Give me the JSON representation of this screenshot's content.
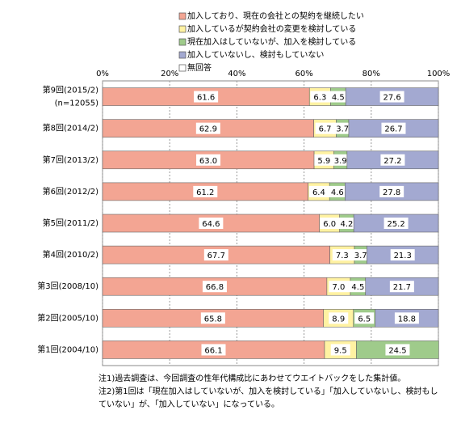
{
  "chart_data": {
    "type": "stacked-bar-horizontal",
    "categories": [
      "第9回(2015/2)",
      "第8回(2014/2)",
      "第7回(2013/2)",
      "第6回(2012/2)",
      "第5回(2011/2)",
      "第4回(2010/2)",
      "第3回(2008/10)",
      "第2回(2005/10)",
      "第1回(2004/10)"
    ],
    "category_sublabels": [
      "(n=12055)",
      null,
      null,
      null,
      null,
      null,
      null,
      null,
      null
    ],
    "series": [
      {
        "name": "加入しており、現在の会社との契約を継続したい",
        "color": "#f3a593",
        "values": [
          61.6,
          62.9,
          63.0,
          61.2,
          64.6,
          67.7,
          66.8,
          65.8,
          66.1
        ],
        "value_labels": [
          "61.6",
          "62.9",
          "63.0",
          "61.2",
          "64.6",
          "67.7",
          "66.8",
          "65.8",
          "66.1"
        ]
      },
      {
        "name": "加入しているが契約会社の変更を検討している",
        "color": "#fff2a2",
        "values": [
          6.3,
          6.7,
          5.9,
          6.4,
          6.0,
          7.3,
          7.0,
          8.9,
          9.5
        ],
        "value_labels": [
          "6.3",
          "6.7",
          "5.9",
          "6.4",
          "6.0",
          "7.3",
          "7.0",
          "8.9",
          "9.5"
        ]
      },
      {
        "name": "現在加入はしていないが、加入を検討している",
        "color": "#9fcb8b",
        "values": [
          4.5,
          3.7,
          3.9,
          4.6,
          4.2,
          3.7,
          4.5,
          6.5,
          24.5
        ],
        "value_labels": [
          "4.5",
          "3.7",
          "3.9",
          "4.6",
          "4.2",
          "3.7",
          "4.5",
          "6.5",
          "24.5"
        ]
      },
      {
        "name": "加入していないし、検討もしていない",
        "color": "#a3a9d1",
        "values": [
          27.6,
          26.7,
          27.2,
          27.8,
          25.2,
          21.3,
          21.7,
          18.8,
          null
        ],
        "value_labels": [
          "27.6",
          "26.7",
          "27.2",
          "27.8",
          "25.2",
          "21.3",
          "21.7",
          "18.8",
          null
        ]
      },
      {
        "name": "無回答",
        "color": "#ffffff",
        "values": [
          null,
          null,
          null,
          null,
          null,
          null,
          null,
          null,
          null
        ]
      }
    ],
    "xlim": [
      0,
      100
    ],
    "xticks": [
      {
        "value": 0,
        "label": "0%"
      },
      {
        "value": 20,
        "label": "20%"
      },
      {
        "value": 40,
        "label": "40%"
      },
      {
        "value": 60,
        "label": "60%"
      },
      {
        "value": 80,
        "label": "80%"
      },
      {
        "value": 100,
        "label": "100%"
      }
    ],
    "grid": true,
    "notes": [
      "注1)過去調査は、今回調査の性年代構成比にあわせてウエイトバックをした集計値。",
      "注2)第1回は「現在加入はしていないが、加入を検討している」「加入していないし、検討もし",
      "ていない」が、「加入していない」になっている。"
    ]
  }
}
